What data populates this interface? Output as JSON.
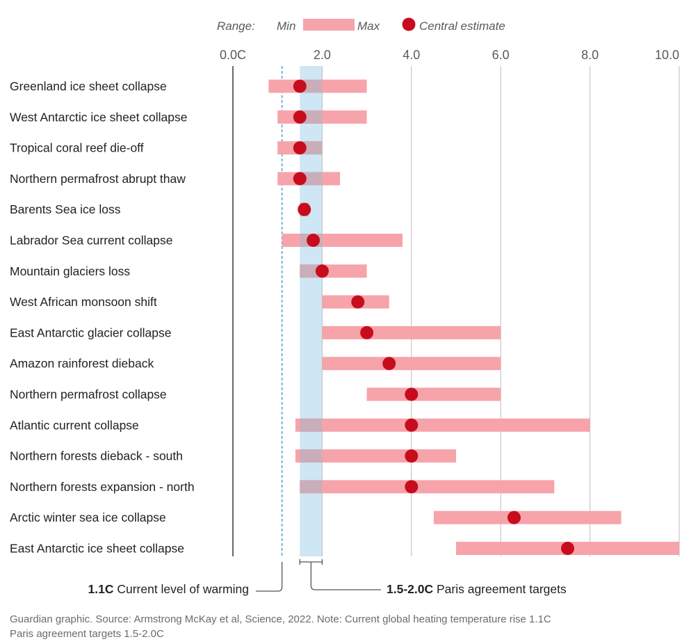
{
  "chart_data": {
    "type": "range",
    "legend": {
      "range_label": "Range:",
      "min_label": "Min",
      "max_label": "Max",
      "central_label": "Central estimate"
    },
    "x_ticks": [
      "0.0C",
      "2.0",
      "4.0",
      "6.0",
      "8.0",
      "10.0"
    ],
    "xlim": [
      0,
      10
    ],
    "grid": true,
    "items": [
      {
        "name": "Greenland ice sheet collapse",
        "min": 0.8,
        "max": 3.0,
        "central": 1.5
      },
      {
        "name": "West Antarctic ice sheet collapse",
        "min": 1.0,
        "max": 3.0,
        "central": 1.5
      },
      {
        "name": "Tropical coral reef die-off",
        "min": 1.0,
        "max": 2.0,
        "central": 1.5
      },
      {
        "name": "Northern permafrost abrupt thaw",
        "min": 1.0,
        "max": 2.4,
        "central": 1.5
      },
      {
        "name": "Barents Sea ice loss",
        "min": 1.5,
        "max": 1.7,
        "central": 1.6
      },
      {
        "name": "Labrador Sea current collapse",
        "min": 1.1,
        "max": 3.8,
        "central": 1.8
      },
      {
        "name": "Mountain glaciers loss",
        "min": 1.5,
        "max": 3.0,
        "central": 2.0
      },
      {
        "name": "West African monsoon shift",
        "min": 2.0,
        "max": 3.5,
        "central": 2.8
      },
      {
        "name": "East Antarctic glacier collapse",
        "min": 2.0,
        "max": 6.0,
        "central": 3.0
      },
      {
        "name": "Amazon rainforest dieback",
        "min": 2.0,
        "max": 6.0,
        "central": 3.5
      },
      {
        "name": "Northern permafrost collapse",
        "min": 3.0,
        "max": 6.0,
        "central": 4.0
      },
      {
        "name": "Atlantic current collapse",
        "min": 1.4,
        "max": 8.0,
        "central": 4.0
      },
      {
        "name": "Northern forests dieback - south",
        "min": 1.4,
        "max": 5.0,
        "central": 4.0
      },
      {
        "name": "Northern forests expansion - north",
        "min": 1.5,
        "max": 7.2,
        "central": 4.0
      },
      {
        "name": "Arctic winter sea ice collapse",
        "min": 4.5,
        "max": 8.7,
        "central": 6.3
      },
      {
        "name": "East Antarctic ice sheet collapse",
        "min": 5.0,
        "max": 10.0,
        "central": 7.5
      }
    ],
    "current_warming": {
      "value": 1.1,
      "label_bold": "1.1C",
      "label_text": " Current level of warming"
    },
    "paris_targets": {
      "min": 1.5,
      "max": 2.0,
      "label_bold": "1.5-2.0C",
      "label_text": " Paris agreement targets"
    },
    "colors": {
      "bar": "#f7a3aa",
      "bar_overlap": "#c9aeba",
      "dot": "#c70d1d",
      "paris_band": "#cfe6f4",
      "current_line": "#3a9bd0",
      "grid": "#bdbdbd",
      "axis": "#444444"
    }
  },
  "footnote": {
    "line1": "Guardian graphic. Source: Armstrong McKay et al, Science, 2022. Note: Current global heating temperature rise 1.1C",
    "line2": "Paris agreement targets 1.5-2.0C"
  }
}
